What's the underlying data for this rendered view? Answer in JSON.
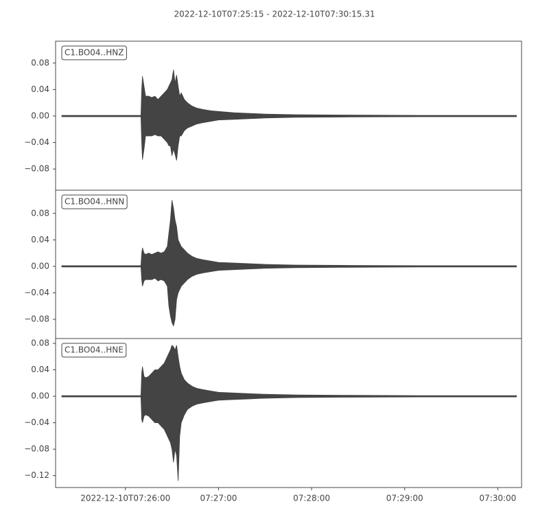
{
  "chart_data": [
    {
      "type": "area",
      "title": "2022-12-10T07:25:15  -  2022-12-10T07:30:15.31",
      "label": "C1.BO04..HNZ",
      "color": "#444444",
      "x": [
        19,
        70,
        70.5,
        71,
        72,
        73,
        75,
        77,
        79,
        81,
        83,
        85,
        87,
        88,
        89,
        90,
        91,
        92,
        93,
        94,
        95,
        96,
        98,
        100,
        103,
        106,
        110,
        115,
        120,
        130,
        140,
        150,
        170,
        200,
        250,
        312
      ],
      "upper": [
        0.001,
        0.001,
        0.04,
        0.06,
        0.045,
        0.03,
        0.03,
        0.028,
        0.03,
        0.025,
        0.03,
        0.035,
        0.04,
        0.045,
        0.05,
        0.055,
        0.07,
        0.05,
        0.062,
        0.045,
        0.03,
        0.035,
        0.025,
        0.02,
        0.015,
        0.012,
        0.01,
        0.008,
        0.007,
        0.005,
        0.004,
        0.003,
        0.002,
        0.0015,
        0.001,
        0.001
      ],
      "lower": [
        -0.001,
        -0.001,
        -0.04,
        -0.066,
        -0.05,
        -0.03,
        -0.03,
        -0.03,
        -0.028,
        -0.03,
        -0.03,
        -0.035,
        -0.04,
        -0.045,
        -0.045,
        -0.06,
        -0.05,
        -0.058,
        -0.067,
        -0.045,
        -0.03,
        -0.03,
        -0.022,
        -0.018,
        -0.015,
        -0.012,
        -0.01,
        -0.008,
        -0.006,
        -0.005,
        -0.004,
        -0.003,
        -0.002,
        -0.0015,
        -0.001,
        -0.001
      ],
      "xlim": [
        15,
        315.31
      ],
      "ylim": [
        -0.112,
        0.113
      ],
      "yticks": [
        {
          "value": -0.08,
          "label": "−0.08"
        },
        {
          "value": -0.04,
          "label": "−0.04"
        },
        {
          "value": 0,
          "label": "0.00"
        },
        {
          "value": 0.04,
          "label": "0.04"
        },
        {
          "value": 0.08,
          "label": "0.08"
        }
      ]
    },
    {
      "type": "area",
      "label": "C1.BO04..HNN",
      "color": "#444444",
      "x": [
        19,
        70,
        70.5,
        71,
        72,
        73,
        75,
        77,
        79,
        81,
        83,
        85,
        87,
        88,
        89,
        90,
        91,
        92,
        93,
        94,
        95,
        96,
        98,
        100,
        103,
        106,
        110,
        115,
        120,
        130,
        140,
        150,
        170,
        200,
        250,
        312
      ],
      "upper": [
        0.001,
        0.001,
        0.02,
        0.028,
        0.02,
        0.018,
        0.02,
        0.018,
        0.02,
        0.022,
        0.02,
        0.022,
        0.03,
        0.05,
        0.07,
        0.1,
        0.088,
        0.07,
        0.06,
        0.04,
        0.035,
        0.03,
        0.025,
        0.02,
        0.015,
        0.012,
        0.01,
        0.008,
        0.006,
        0.005,
        0.004,
        0.003,
        0.002,
        0.0015,
        0.001,
        0.001
      ],
      "lower": [
        -0.001,
        -0.001,
        -0.02,
        -0.03,
        -0.022,
        -0.02,
        -0.02,
        -0.02,
        -0.018,
        -0.022,
        -0.02,
        -0.022,
        -0.03,
        -0.06,
        -0.075,
        -0.085,
        -0.09,
        -0.08,
        -0.05,
        -0.04,
        -0.035,
        -0.03,
        -0.025,
        -0.02,
        -0.015,
        -0.012,
        -0.01,
        -0.008,
        -0.006,
        -0.005,
        -0.004,
        -0.003,
        -0.002,
        -0.0015,
        -0.001,
        -0.001
      ],
      "xlim": [
        15,
        315.31
      ],
      "ylim": [
        -0.109,
        0.115
      ],
      "yticks": [
        {
          "value": -0.08,
          "label": "−0.08"
        },
        {
          "value": -0.04,
          "label": "−0.04"
        },
        {
          "value": 0,
          "label": "0.00"
        },
        {
          "value": 0.04,
          "label": "0.04"
        },
        {
          "value": 0.08,
          "label": "0.08"
        }
      ]
    },
    {
      "type": "area",
      "label": "C1.BO04..HNE",
      "color": "#444444",
      "x": [
        19,
        70,
        70.5,
        71,
        72,
        73,
        75,
        77,
        79,
        81,
        83,
        85,
        87,
        88,
        89,
        90,
        91,
        92,
        93,
        94,
        95,
        96,
        98,
        100,
        103,
        106,
        110,
        115,
        120,
        130,
        140,
        150,
        170,
        200,
        250,
        312
      ],
      "upper": [
        0.001,
        0.001,
        0.035,
        0.045,
        0.03,
        0.028,
        0.03,
        0.035,
        0.04,
        0.04,
        0.045,
        0.05,
        0.06,
        0.065,
        0.07,
        0.077,
        0.075,
        0.07,
        0.077,
        0.06,
        0.045,
        0.035,
        0.025,
        0.02,
        0.015,
        0.012,
        0.01,
        0.008,
        0.006,
        0.005,
        0.004,
        0.003,
        0.002,
        0.0015,
        0.001,
        0.001
      ],
      "lower": [
        -0.001,
        -0.001,
        -0.035,
        -0.04,
        -0.03,
        -0.028,
        -0.03,
        -0.035,
        -0.04,
        -0.04,
        -0.045,
        -0.05,
        -0.06,
        -0.065,
        -0.07,
        -0.08,
        -0.1,
        -0.08,
        -0.09,
        -0.128,
        -0.06,
        -0.04,
        -0.028,
        -0.02,
        -0.015,
        -0.012,
        -0.01,
        -0.008,
        -0.006,
        -0.005,
        -0.004,
        -0.003,
        -0.002,
        -0.0015,
        -0.001,
        -0.001
      ],
      "xlim": [
        15,
        315.31
      ],
      "ylim": [
        -0.138,
        0.0873
      ],
      "yticks": [
        {
          "value": -0.12,
          "label": "−0.12"
        },
        {
          "value": -0.08,
          "label": "−0.08"
        },
        {
          "value": -0.04,
          "label": "−0.04"
        },
        {
          "value": 0,
          "label": "0.00"
        },
        {
          "value": 0.04,
          "label": "0.04"
        },
        {
          "value": 0.08,
          "label": "0.08"
        }
      ],
      "xticks": [
        {
          "value": 60,
          "label": "2022-12-10T07:26:00"
        },
        {
          "value": 120,
          "label": "07:27:00"
        },
        {
          "value": 180,
          "label": "07:28:00"
        },
        {
          "value": 240,
          "label": "07:29:00"
        },
        {
          "value": 300,
          "label": "07:30:00"
        }
      ]
    }
  ]
}
